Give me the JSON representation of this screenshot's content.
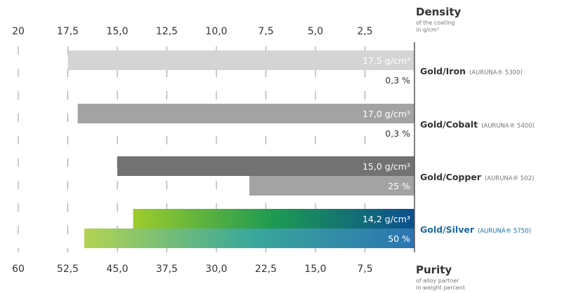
{
  "chart_data": {
    "type": "bar",
    "top_axis": {
      "title": "Density",
      "subtitle_lines": [
        "of the coating",
        "in g/cm³"
      ],
      "ticks": [
        "20",
        "17,5",
        "15,0",
        "12,5",
        "10,0",
        "7,5",
        "5,0",
        "2,5"
      ],
      "tick_values": [
        20,
        17.5,
        15,
        12.5,
        10,
        7.5,
        5,
        2.5
      ],
      "range": [
        20,
        0
      ]
    },
    "bottom_axis": {
      "title": "Purity",
      "subtitle_lines": [
        "of alloy partner",
        "in weight percent"
      ],
      "ticks": [
        "60",
        "52,5",
        "45,0",
        "37,5",
        "30,0",
        "22,5",
        "15,0",
        "7,5"
      ],
      "tick_values": [
        60,
        52.5,
        45,
        37.5,
        30,
        22.5,
        15,
        7.5
      ],
      "range": [
        60,
        0
      ]
    },
    "categories": [
      {
        "name": "Gold/Iron",
        "product": "(AURUNA® 5300)",
        "density": 17.5,
        "density_label": "17,5 g/cm³",
        "purity": 0.3,
        "purity_label": "0,3 %",
        "density_color": "#d4d4d4",
        "purity_color": null,
        "accent": false
      },
      {
        "name": "Gold/Cobalt",
        "product": "(AURUNA® 5400)",
        "density": 17.0,
        "density_label": "17,0 g/cm³",
        "purity": 0.3,
        "purity_label": "0,3 %",
        "density_color": "#a3a3a3",
        "purity_color": null,
        "accent": false
      },
      {
        "name": "Gold/Copper",
        "product": "(AURUNA® 502)",
        "density": 15.0,
        "density_label": "15,0 g/cm³",
        "purity": 25,
        "purity_label": "25 %",
        "density_color": "#727272",
        "purity_color": "#a3a3a3",
        "accent": false
      },
      {
        "name": "Gold/Silver",
        "product": "(AURUNA® 5750)",
        "density": 14.2,
        "density_label": "14,2 g/cm³",
        "purity": 50,
        "purity_label": "50 %",
        "density_gradient": [
          "#9ecb2c",
          "#1d9a52",
          "#0b4f8f"
        ],
        "purity_gradient": [
          "#b3d453",
          "#3aa89a",
          "#2b74b2"
        ],
        "accent": true
      }
    ],
    "grid": "dashed vertical"
  }
}
